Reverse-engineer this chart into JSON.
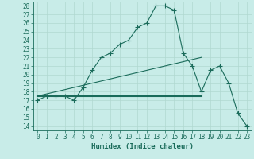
{
  "title": "",
  "xlabel": "Humidex (Indice chaleur)",
  "ylabel": "",
  "bg_color": "#c8ece8",
  "line_color": "#1a6b5a",
  "grid_color": "#b0d8d0",
  "xlim": [
    -0.5,
    23.5
  ],
  "ylim": [
    13.5,
    28.5
  ],
  "yticks": [
    14,
    15,
    16,
    17,
    18,
    19,
    20,
    21,
    22,
    23,
    24,
    25,
    26,
    27,
    28
  ],
  "xticks": [
    0,
    1,
    2,
    3,
    4,
    5,
    6,
    7,
    8,
    9,
    10,
    11,
    12,
    13,
    14,
    15,
    16,
    17,
    18,
    19,
    20,
    21,
    22,
    23
  ],
  "series1_x": [
    0,
    1,
    2,
    3,
    4,
    5,
    6,
    7,
    8,
    9,
    10,
    11,
    12,
    13,
    14,
    15,
    16,
    17,
    18,
    19,
    20,
    21,
    22,
    23
  ],
  "series1_y": [
    17.0,
    17.5,
    17.5,
    17.5,
    17.0,
    18.5,
    20.5,
    22.0,
    22.5,
    23.5,
    24.0,
    25.5,
    26.0,
    28.0,
    28.0,
    27.5,
    22.5,
    21.0,
    18.0,
    20.5,
    21.0,
    19.0,
    15.5,
    14.0
  ],
  "series2_x": [
    0,
    18
  ],
  "series2_y": [
    17.5,
    17.5
  ],
  "series3_x": [
    0,
    18
  ],
  "series3_y": [
    17.5,
    22.0
  ],
  "marker": "+",
  "markersize": 4,
  "linewidth": 0.8,
  "linewidth2": 1.5
}
